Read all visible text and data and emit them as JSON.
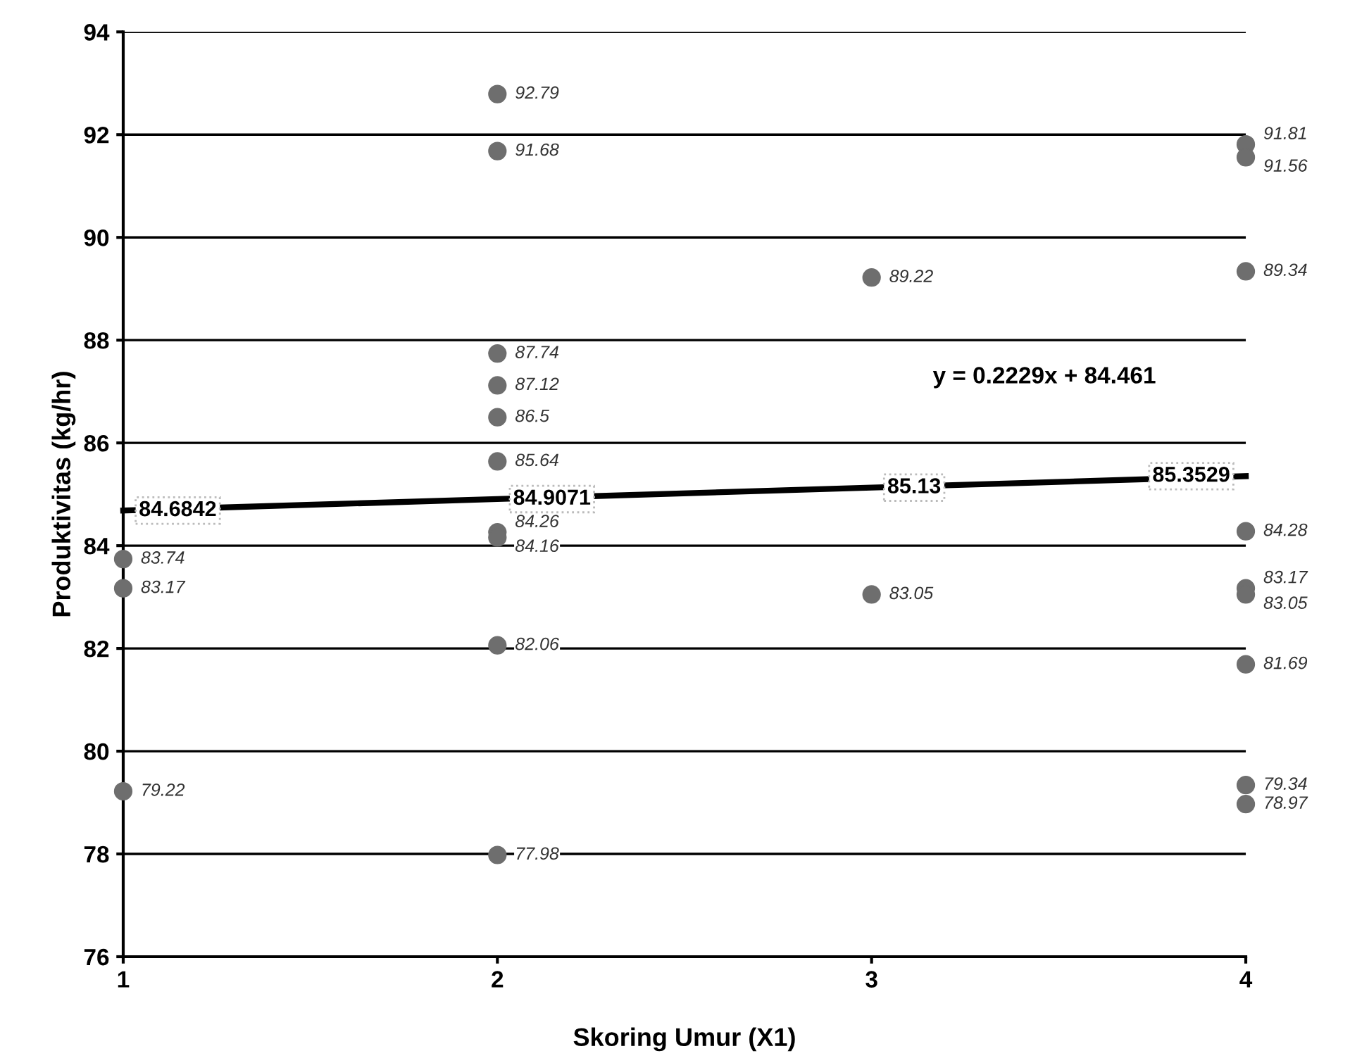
{
  "chart_data": {
    "type": "scatter",
    "xlabel": "Skoring Umur (X1)",
    "ylabel": "Produktivitas (kg/hr)",
    "xlim": [
      1,
      4
    ],
    "xticks": [
      1,
      2,
      3,
      4
    ],
    "ylim": [
      76,
      94
    ],
    "yticks": [
      76,
      78,
      80,
      82,
      84,
      86,
      88,
      90,
      92,
      94
    ],
    "grid": "y",
    "data_labels": true,
    "annotations": [
      "y = 0.2229x + 84.461"
    ],
    "series": [
      {
        "marker": "circle",
        "color": "#6e6e6e",
        "x": [
          1,
          1,
          1,
          2,
          2,
          2,
          2,
          2,
          2,
          2,
          2,
          2,
          2,
          3,
          3,
          4,
          4,
          4,
          4,
          4,
          4,
          4,
          4,
          4
        ],
        "values": [
          83.74,
          83.17,
          79.22,
          92.79,
          91.68,
          87.74,
          87.12,
          86.5,
          85.64,
          84.26,
          84.16,
          82.06,
          77.98,
          89.22,
          83.05,
          91.81,
          91.56,
          89.34,
          84.28,
          83.17,
          83.05,
          81.69,
          79.34,
          78.97
        ]
      },
      {
        "type": "line",
        "marker": "none",
        "color": "#000000",
        "x": [
          1,
          2,
          3,
          4
        ],
        "values": [
          84.6842,
          84.9071,
          85.13,
          85.3529
        ]
      }
    ]
  }
}
